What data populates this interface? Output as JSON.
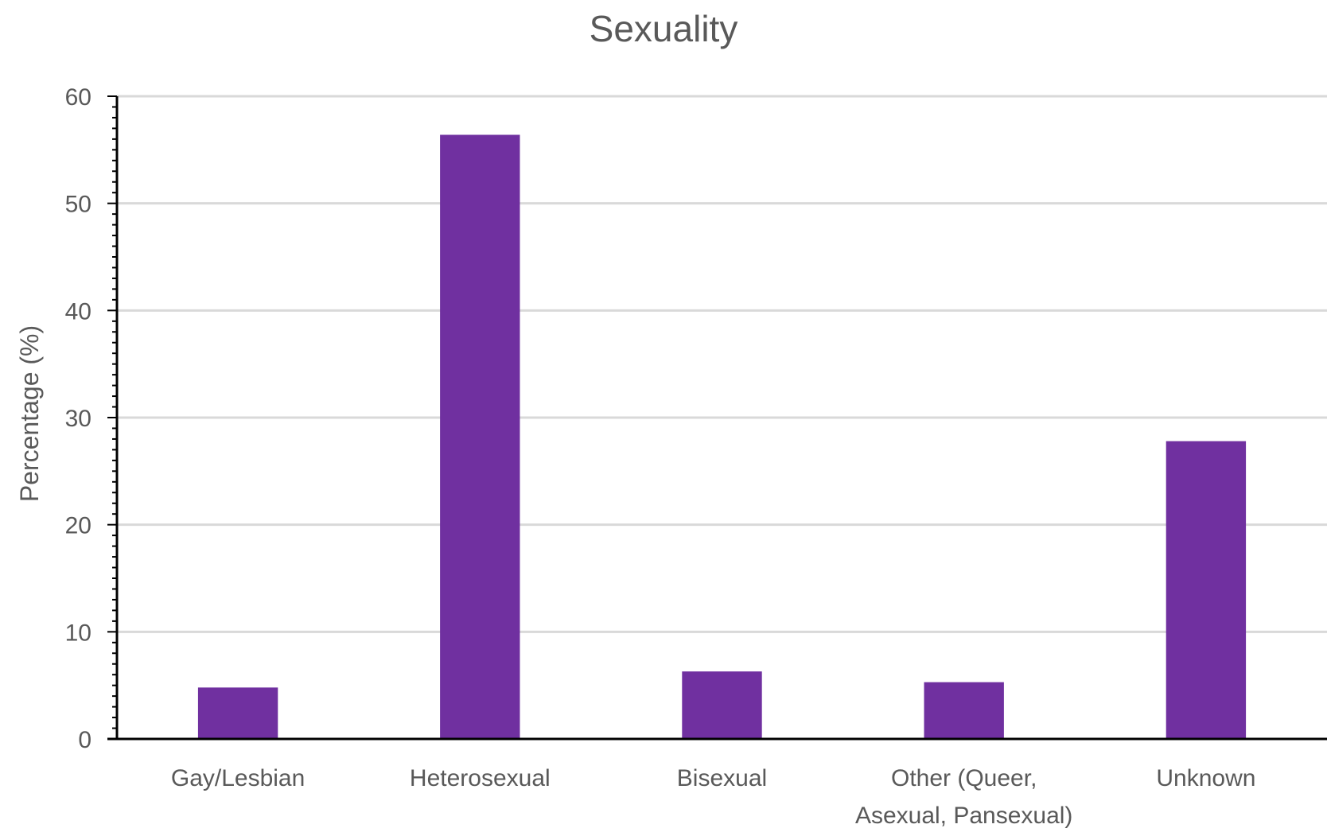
{
  "chart_data": {
    "type": "bar",
    "title": "Sexuality",
    "xlabel": "",
    "ylabel": "Percentage (%)",
    "categories": [
      [
        "Gay/Lesbian"
      ],
      [
        "Heterosexual"
      ],
      [
        "Bisexual"
      ],
      [
        "Other (Queer,",
        "Asexual, Pansexual)"
      ],
      [
        "Unknown"
      ]
    ],
    "values": [
      4.8,
      56.4,
      6.3,
      5.3,
      27.8
    ],
    "ylim": [
      0,
      60
    ],
    "yticks": [
      "0",
      "10",
      "20",
      "30",
      "40",
      "50",
      "60"
    ],
    "grid": true,
    "legend": "none",
    "bar_color": "#7030a0"
  }
}
